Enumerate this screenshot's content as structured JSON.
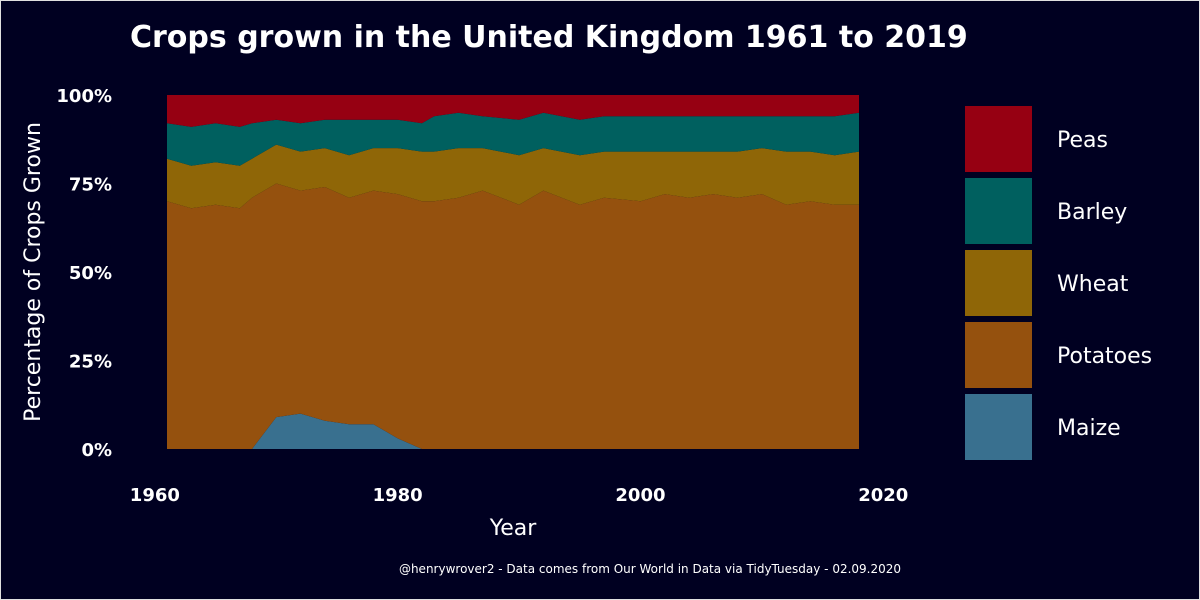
{
  "chart_data": {
    "type": "area",
    "stacked": "percent",
    "title": "Crops grown in the United Kingdom 1961 to 2019",
    "xlabel": "Year",
    "ylabel": "Percentage of Crops Grown",
    "caption": "@henrywrover2 - Data comes from Our World in Data via TidyTuesday - 02.09.2020",
    "xlim": [
      1961,
      2018
    ],
    "ylim": [
      0,
      100
    ],
    "x_ticks": [
      1960,
      1980,
      2000,
      2020
    ],
    "x_tick_labels": [
      "1960",
      "1980",
      "2000",
      "2020"
    ],
    "y_ticks": [
      0,
      25,
      50,
      75,
      100
    ],
    "y_tick_labels": [
      "0%",
      "25%",
      "50%",
      "75%",
      "100%"
    ],
    "grid": false,
    "legend_position": "right",
    "x": [
      1961,
      1963,
      1965,
      1967,
      1968,
      1970,
      1972,
      1974,
      1976,
      1978,
      1980,
      1982,
      1983,
      1985,
      1987,
      1990,
      1992,
      1995,
      1997,
      2000,
      2002,
      2004,
      2006,
      2008,
      2010,
      2012,
      2014,
      2016,
      2018
    ],
    "series": [
      {
        "name": "Maize",
        "color": "#39708F",
        "values": [
          0,
          0,
          0,
          0,
          0,
          9,
          10,
          8,
          7,
          7,
          3,
          0,
          0,
          0,
          0,
          0,
          0,
          0,
          0,
          0,
          0,
          0,
          0,
          0,
          0,
          0,
          0,
          0,
          0
        ]
      },
      {
        "name": "Potatoes",
        "color": "#95510E",
        "values": [
          70,
          68,
          69,
          68,
          71,
          66,
          63,
          66,
          64,
          66,
          69,
          70,
          70,
          71,
          73,
          69,
          73,
          69,
          71,
          70,
          72,
          71,
          72,
          71,
          72,
          69,
          70,
          69,
          69
        ]
      },
      {
        "name": "Wheat",
        "color": "#8F6607",
        "values": [
          12,
          12,
          12,
          12,
          11,
          11,
          11,
          11,
          12,
          12,
          13,
          14,
          14,
          14,
          12,
          14,
          12,
          14,
          13,
          14,
          12,
          13,
          12,
          13,
          13,
          15,
          14,
          14,
          15
        ]
      },
      {
        "name": "Barley",
        "color": "#00605F",
        "values": [
          10,
          11,
          11,
          11,
          10,
          7,
          8,
          8,
          10,
          8,
          8,
          8,
          10,
          10,
          9,
          10,
          10,
          10,
          10,
          10,
          10,
          10,
          10,
          10,
          9,
          10,
          10,
          11,
          11
        ]
      },
      {
        "name": "Peas",
        "color": "#960012",
        "values": [
          8,
          9,
          8,
          9,
          8,
          7,
          8,
          7,
          7,
          7,
          7,
          8,
          6,
          5,
          6,
          7,
          5,
          7,
          6,
          6,
          6,
          6,
          6,
          6,
          6,
          6,
          6,
          6,
          5
        ]
      }
    ],
    "legend_order": [
      "Peas",
      "Barley",
      "Wheat",
      "Potatoes",
      "Maize"
    ]
  }
}
